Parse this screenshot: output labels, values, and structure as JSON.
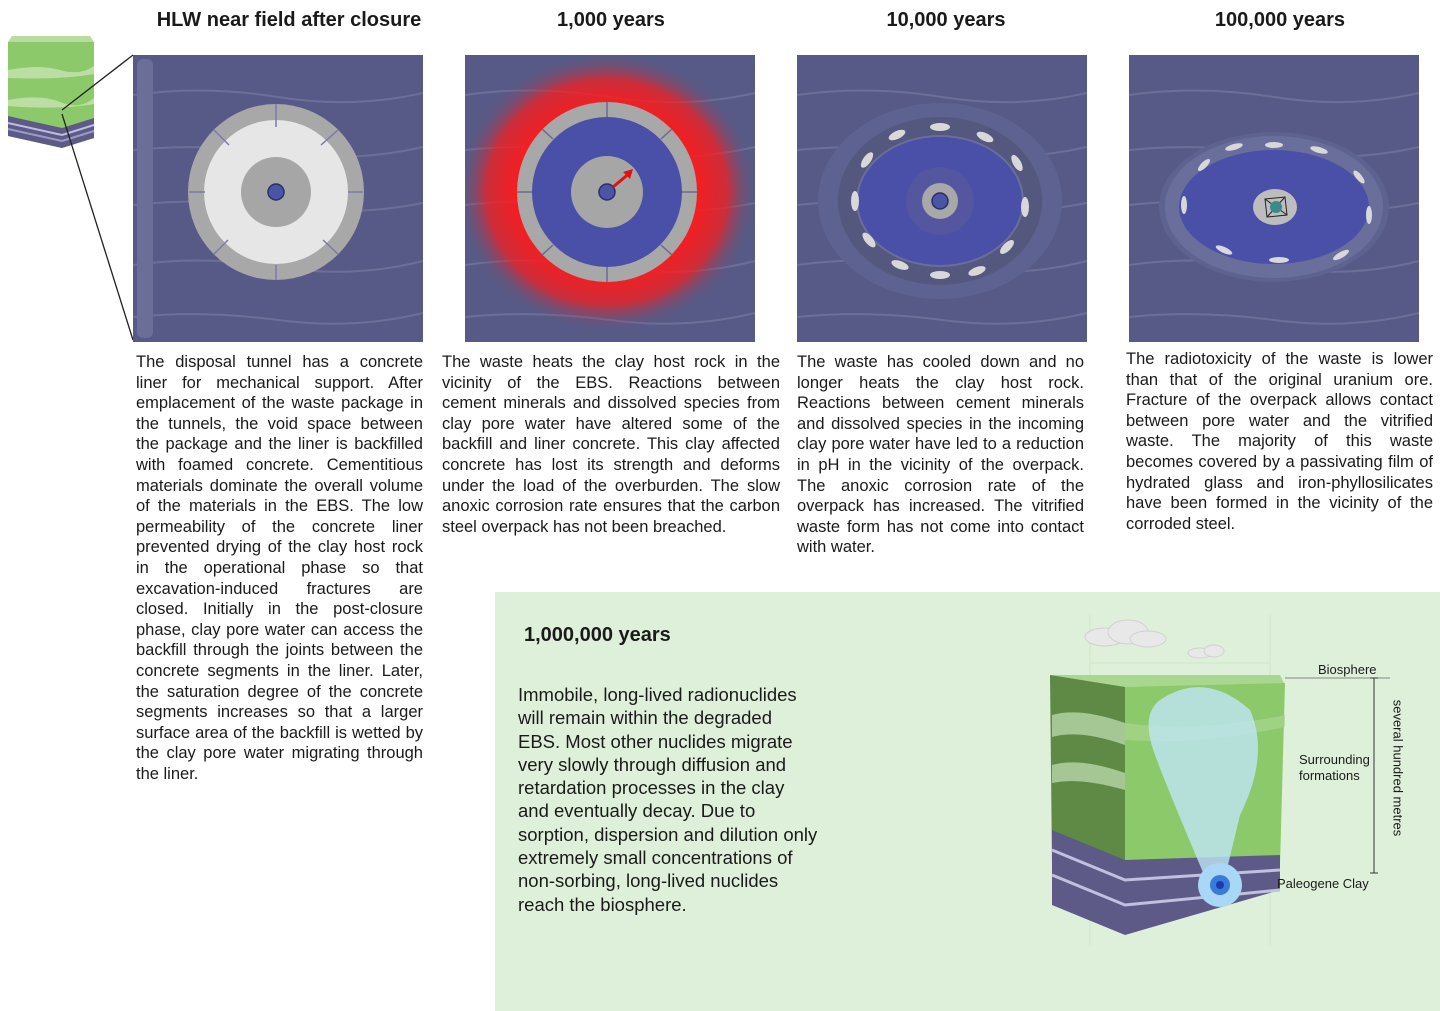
{
  "titles": {
    "after_closure": "HLW near field after closure",
    "y1000": "1,000 years",
    "y10000": "10,000 years",
    "y100000": "100,000 years",
    "y1000000": "1,000,000 years"
  },
  "captions": {
    "after_closure": "The disposal tunnel has a concrete liner for mechanical support. After emplacement of the waste package in the tunnels, the void space between the package and the liner is backfilled with foamed concrete. Cementitious materials dominate the overall volume of the materials in the EBS. The low permeability of the concrete liner prevented drying of the clay host rock in the operational phase so that excavation-induced fractures are closed. Initially in the post-closure phase, clay pore water can access the backfill through the joints between the concrete segments in the liner. Later, the saturation degree of the concrete segments increases so that a larger surface area of the backfill is wetted by the clay pore water migrating through the liner.",
    "y1000": "The waste heats the clay host rock in the vicinity of the EBS. Reactions between cement minerals and dissolved species from clay pore water have altered some of the backfill and liner concrete. This clay affected concrete has lost its strength and deforms under the load of the overburden. The slow anoxic corrosion rate ensures that the carbon steel overpack has not been breached.",
    "y10000": "The waste has cooled down and no longer heats the clay host rock. Reactions between cement minerals and dissolved species in the incoming clay pore water have led to a reduction in pH in the vicinity of the overpack. The anoxic corrosion rate of the overpack has increased. The vitrified waste form has not come into contact with water.",
    "y100000": "The radiotoxicity of the waste is lower than that of the original uranium ore. Fracture of the overpack allows contact between pore water and the vitrified waste. The majority of this waste becomes covered by a passivating film of hydrated glass and iron-phyllosilicates have been formed in the vicinity of the corroded steel.",
    "y1000000": "Immobile, long-lived radionuclides will remain within the degraded EBS. Most other nuclides migrate very slowly through diffusion and retardation processes in the clay and eventually decay. Due to sorption, dispersion and dilution only extremely small concentrations of non-sorbing, long-lived nuclides reach the biosphere."
  },
  "cube_labels": {
    "biosphere": "Biosphere",
    "surrounding": "Surrounding formations",
    "clay": "Paleogene Clay",
    "depth": "several hundred metres"
  },
  "colors": {
    "host_rock": "#575a86",
    "blue_fill": "#4a4fa8",
    "heat_red": "#ff1a1a",
    "liner_grey": "#a8a8a8",
    "backfill_light": "#e6e6e6",
    "green_panel": "#dff0da",
    "cube_green": "#8cc96a"
  }
}
